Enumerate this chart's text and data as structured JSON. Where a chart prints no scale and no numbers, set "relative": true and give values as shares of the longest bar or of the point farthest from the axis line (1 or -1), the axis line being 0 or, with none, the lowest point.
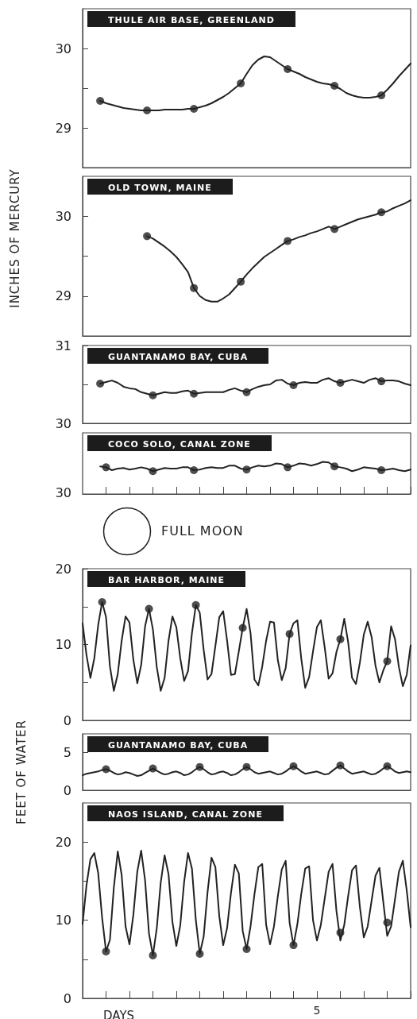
{
  "chart_data": [
    {
      "type": "line",
      "title": "THULE AIR BASE, GREENLAND",
      "ylim": [
        28.5,
        30.5
      ],
      "yticks": [
        29,
        {
          "value": 29.5,
          "label": null
        },
        30
      ],
      "tick_labels": "y",
      "categories": [
        null,
        null,
        null,
        null,
        null,
        null,
        null,
        null,
        null,
        null,
        null,
        null,
        null,
        null,
        null,
        null,
        null,
        null,
        null,
        null,
        null,
        null,
        null,
        null,
        null,
        null,
        null,
        null,
        null,
        null,
        null,
        null,
        null,
        null,
        null,
        null,
        null,
        null,
        null,
        null,
        null,
        null,
        null,
        null,
        null,
        null,
        null,
        null,
        null,
        null,
        null,
        null,
        null,
        null,
        null,
        null,
        null
      ],
      "series": [
        {
          "marker": "none",
          "color": "#222222",
          "values": [
            null,
            null,
            null,
            29.34,
            29.31,
            29.29,
            29.27,
            29.25,
            29.24,
            29.23,
            29.22,
            29.22,
            29.22,
            29.22,
            29.23,
            29.23,
            29.23,
            29.23,
            29.24,
            29.24,
            29.26,
            29.28,
            29.31,
            29.35,
            29.39,
            29.44,
            29.5,
            29.56,
            29.68,
            29.79,
            29.86,
            29.9,
            29.89,
            29.84,
            29.79,
            29.74,
            29.71,
            29.68,
            29.64,
            29.61,
            29.58,
            29.56,
            29.55,
            29.53,
            29.49,
            29.44,
            29.41,
            29.39,
            29.38,
            29.38,
            29.39,
            29.41,
            29.48,
            29.56,
            29.65,
            29.73,
            29.81
          ]
        },
        {
          "type": "scatter",
          "marker": "circle",
          "color": "#222222",
          "values": [
            null,
            null,
            null,
            29.34,
            null,
            null,
            null,
            null,
            null,
            null,
            null,
            29.22,
            null,
            null,
            null,
            null,
            null,
            null,
            null,
            29.24,
            null,
            null,
            null,
            null,
            null,
            null,
            null,
            29.56,
            null,
            null,
            null,
            null,
            null,
            null,
            null,
            29.74,
            null,
            null,
            null,
            null,
            null,
            null,
            null,
            29.53,
            null,
            null,
            null,
            null,
            null,
            null,
            null,
            29.41,
            null,
            null,
            null,
            null,
            null
          ]
        }
      ]
    },
    {
      "type": "line",
      "title": "OLD TOWN, MAINE",
      "ylabel": "INCHES OF MERCURY",
      "ylim": [
        28.5,
        30.5
      ],
      "yticks": [
        29,
        {
          "value": 29.5,
          "label": null
        },
        30
      ],
      "tick_labels": "y",
      "categories": [
        null,
        null,
        null,
        null,
        null,
        null,
        null,
        null,
        null,
        null,
        null,
        null,
        null,
        null,
        null,
        null,
        null,
        null,
        null,
        null,
        null,
        null,
        null,
        null,
        null,
        null,
        null,
        null,
        null,
        null,
        null,
        null,
        null,
        null,
        null,
        null,
        null,
        null,
        null,
        null,
        null,
        null,
        null,
        null,
        null,
        null,
        null,
        null,
        null,
        null,
        null,
        null,
        null,
        null,
        null,
        null,
        null
      ],
      "series": [
        {
          "marker": "none",
          "color": "#222222",
          "values": [
            null,
            null,
            null,
            null,
            null,
            null,
            null,
            null,
            null,
            null,
            null,
            29.75,
            29.72,
            29.67,
            29.62,
            29.56,
            29.49,
            29.4,
            29.3,
            29.1,
            29.0,
            28.95,
            28.93,
            28.93,
            28.97,
            29.02,
            29.1,
            29.18,
            29.27,
            29.35,
            29.42,
            29.49,
            29.54,
            29.59,
            29.64,
            29.69,
            29.71,
            29.74,
            29.76,
            29.79,
            29.81,
            29.84,
            29.87,
            29.84,
            29.87,
            29.9,
            29.93,
            29.96,
            29.98,
            30.0,
            30.02,
            30.05,
            30.06,
            30.1,
            30.13,
            30.16,
            30.2
          ]
        },
        {
          "type": "scatter",
          "marker": "circle",
          "color": "#222222",
          "values": [
            null,
            null,
            null,
            null,
            null,
            null,
            null,
            null,
            null,
            null,
            null,
            29.75,
            null,
            null,
            null,
            null,
            null,
            null,
            null,
            29.1,
            null,
            null,
            null,
            null,
            null,
            null,
            null,
            29.18,
            null,
            null,
            null,
            null,
            null,
            null,
            null,
            29.69,
            null,
            null,
            null,
            null,
            null,
            null,
            null,
            29.84,
            null,
            null,
            null,
            null,
            null,
            null,
            null,
            30.05,
            null,
            null,
            null,
            null,
            null
          ]
        }
      ]
    },
    {
      "type": "line",
      "title": "GUANTANAMO BAY, CUBA",
      "ylim": [
        30,
        31
      ],
      "yticks": [
        30,
        {
          "value": 30.5,
          "label": null
        },
        31
      ],
      "tick_labels": "y",
      "categories": [
        null,
        null,
        null,
        null,
        null,
        null,
        null,
        null,
        null,
        null,
        null,
        null,
        null,
        null,
        null,
        null,
        null,
        null,
        null,
        null,
        null,
        null,
        null,
        null,
        null,
        null,
        null,
        null,
        null,
        null,
        null,
        null,
        null,
        null,
        null,
        null,
        null,
        null,
        null,
        null,
        null,
        null,
        null,
        null,
        null,
        null,
        null,
        null,
        null,
        null,
        null,
        null,
        null,
        null,
        null,
        null,
        null
      ],
      "series": [
        {
          "marker": "none",
          "color": "#222222",
          "values": [
            null,
            null,
            null,
            30.51,
            30.53,
            30.55,
            30.52,
            30.47,
            30.45,
            30.44,
            30.4,
            30.38,
            30.36,
            30.38,
            30.4,
            30.39,
            30.39,
            30.41,
            30.42,
            30.38,
            30.39,
            30.4,
            30.4,
            30.4,
            30.4,
            30.43,
            30.45,
            30.42,
            30.4,
            30.44,
            30.47,
            30.49,
            30.5,
            30.55,
            30.56,
            30.51,
            30.49,
            30.52,
            30.53,
            30.52,
            30.52,
            30.56,
            30.58,
            30.54,
            30.52,
            30.54,
            30.56,
            30.54,
            30.52,
            30.56,
            30.58,
            30.54,
            30.55,
            30.55,
            30.54,
            30.51,
            30.49
          ]
        },
        {
          "type": "scatter",
          "marker": "circle",
          "color": "#222222",
          "values": [
            null,
            null,
            null,
            30.51,
            null,
            null,
            null,
            null,
            null,
            null,
            null,
            null,
            30.36,
            null,
            null,
            null,
            null,
            null,
            null,
            30.38,
            null,
            null,
            null,
            null,
            null,
            null,
            null,
            null,
            30.4,
            null,
            null,
            null,
            null,
            null,
            null,
            null,
            30.49,
            null,
            null,
            null,
            null,
            null,
            null,
            null,
            30.52,
            null,
            null,
            null,
            null,
            null,
            null,
            30.54,
            null,
            null,
            null,
            null,
            null
          ]
        }
      ]
    },
    {
      "type": "line",
      "title": "COCO SOLO, CANAL ZONE",
      "relative": true,
      "annotations": [
        "30"
      ],
      "tick_labels": false,
      "categories": [
        null,
        null,
        null,
        null,
        null,
        null,
        null,
        null,
        null,
        null,
        null,
        null,
        null,
        null,
        null,
        null,
        null,
        null,
        null,
        null,
        null,
        null,
        null,
        null,
        null,
        null,
        null,
        null,
        null,
        null,
        null,
        null,
        null,
        null,
        null,
        null,
        null,
        null,
        null,
        null,
        null,
        null,
        null,
        null,
        null,
        null,
        null,
        null,
        null,
        null,
        null,
        null,
        null,
        null,
        null,
        null,
        null
      ],
      "series": [
        {
          "marker": "none",
          "color": "#222222",
          "values": [
            null,
            null,
            null,
            0.86,
            0.83,
            0.74,
            0.79,
            0.81,
            0.76,
            0.79,
            0.83,
            0.79,
            0.71,
            0.76,
            0.81,
            0.79,
            0.79,
            0.83,
            0.83,
            0.74,
            0.76,
            0.81,
            0.83,
            0.81,
            0.81,
            0.88,
            0.88,
            0.79,
            0.76,
            0.83,
            0.88,
            0.86,
            0.88,
            0.95,
            0.93,
            0.83,
            0.88,
            0.95,
            0.93,
            0.88,
            0.93,
            1,
            0.98,
            0.86,
            0.83,
            0.79,
            0.71,
            0.76,
            0.83,
            0.81,
            0.79,
            0.74,
            0.76,
            0.79,
            0.74,
            0.71,
            0.76
          ]
        },
        {
          "type": "scatter",
          "marker": "circle",
          "color": "#222222",
          "values": [
            null,
            null,
            null,
            null,
            0.83,
            null,
            null,
            null,
            null,
            null,
            null,
            null,
            0.71,
            null,
            null,
            null,
            null,
            null,
            null,
            0.74,
            null,
            null,
            null,
            null,
            null,
            null,
            null,
            null,
            0.76,
            null,
            null,
            null,
            null,
            null,
            null,
            0.83,
            null,
            null,
            null,
            null,
            null,
            null,
            null,
            0.86,
            null,
            null,
            null,
            null,
            null,
            null,
            null,
            0.74,
            null,
            null,
            null,
            null,
            null
          ]
        }
      ]
    },
    {
      "type": "other",
      "annotations": [
        "FULL MOON"
      ]
    },
    {
      "type": "line",
      "title": "BAR HARBOR, MAINE",
      "ylim": [
        0,
        20
      ],
      "yticks": [
        0,
        {
          "value": 5,
          "label": null
        },
        10,
        {
          "value": 15,
          "label": null
        },
        20
      ],
      "tick_labels": "y",
      "categories": [
        null,
        null,
        null,
        null,
        null,
        null,
        null,
        null,
        null,
        null,
        null,
        null,
        null,
        null,
        null,
        null,
        null,
        null,
        null,
        null,
        null,
        null,
        null,
        null,
        null,
        null,
        null,
        null,
        null,
        null,
        null,
        null,
        null,
        null,
        null,
        null,
        null,
        null,
        null,
        null,
        null,
        null,
        null,
        null,
        null,
        null,
        null,
        null,
        null,
        null,
        null,
        null,
        null,
        null,
        null,
        null,
        null,
        null,
        null,
        null,
        null,
        null,
        null,
        null,
        null,
        null,
        null,
        null,
        null,
        null,
        null,
        null,
        null,
        null,
        null,
        null,
        null,
        null,
        null,
        null,
        null,
        null,
        null,
        null,
        null
      ],
      "series": [
        {
          "marker": "none",
          "color": "#222222",
          "values": [
            12.8,
            8.6,
            5.6,
            8.2,
            12.6,
            15.6,
            13.6,
            7.1,
            3.9,
            6.1,
            10.5,
            13.7,
            12.9,
            8.0,
            4.9,
            7.3,
            12.4,
            14.7,
            12.0,
            7.0,
            3.9,
            5.6,
            10.5,
            13.7,
            12.3,
            8.2,
            5.2,
            6.5,
            11.5,
            15.2,
            14.2,
            9.3,
            5.4,
            6.1,
            9.8,
            13.6,
            14.4,
            10.5,
            6.0,
            6.1,
            9.1,
            12.2,
            14.7,
            11.5,
            5.4,
            4.6,
            7.1,
            10.5,
            13.0,
            12.9,
            7.9,
            5.3,
            6.9,
            11.4,
            12.8,
            13.2,
            8.1,
            4.3,
            5.7,
            9.1,
            12.3,
            13.2,
            9.6,
            5.5,
            6.2,
            9.0,
            10.7,
            13.4,
            10.3,
            5.6,
            4.8,
            7.6,
            11.3,
            13.0,
            11.0,
            7.2,
            5.0,
            6.6,
            7.8,
            12.4,
            10.7,
            7.0,
            4.5,
            6.0,
            9.9
          ]
        },
        {
          "type": "scatter",
          "marker": "circle",
          "color": "#222222",
          "values": [
            null,
            null,
            null,
            null,
            null,
            15.6,
            null,
            null,
            null,
            null,
            null,
            null,
            null,
            null,
            null,
            null,
            null,
            14.7,
            null,
            null,
            null,
            null,
            null,
            null,
            null,
            null,
            null,
            null,
            null,
            15.2,
            null,
            null,
            null,
            null,
            null,
            null,
            null,
            null,
            null,
            null,
            null,
            12.2,
            null,
            null,
            null,
            null,
            null,
            null,
            null,
            null,
            null,
            null,
            null,
            11.4,
            null,
            null,
            null,
            null,
            null,
            null,
            null,
            null,
            null,
            null,
            null,
            null,
            10.7,
            null,
            null,
            null,
            null,
            null,
            null,
            null,
            null,
            null,
            null,
            null,
            7.8,
            null,
            null,
            null,
            null,
            null,
            null
          ]
        }
      ]
    },
    {
      "type": "line",
      "title": "GUANTANAMO BAY, CUBA",
      "ylabel": "FEET OF WATER",
      "ylim": [
        0,
        7.5
      ],
      "yticks": [
        0,
        5
      ],
      "tick_labels": "y",
      "categories": [
        null,
        null,
        null,
        null,
        null,
        null,
        null,
        null,
        null,
        null,
        null,
        null,
        null,
        null,
        null,
        null,
        null,
        null,
        null,
        null,
        null,
        null,
        null,
        null,
        null,
        null,
        null,
        null,
        null,
        null,
        null,
        null,
        null,
        null,
        null,
        null,
        null,
        null,
        null,
        null,
        null,
        null,
        null,
        null,
        null,
        null,
        null,
        null,
        null,
        null,
        null,
        null,
        null,
        null,
        null,
        null,
        null,
        null,
        null,
        null,
        null,
        null,
        null,
        null,
        null,
        null,
        null,
        null,
        null,
        null,
        null,
        null,
        null,
        null,
        null,
        null,
        null,
        null,
        null,
        null,
        null,
        null,
        null,
        null,
        null
      ],
      "series": [
        {
          "marker": "none",
          "color": "#222222",
          "values": [
            2.0,
            2.2,
            2.3,
            2.4,
            2.5,
            2.7,
            2.8,
            2.6,
            2.3,
            2.1,
            2.2,
            2.4,
            2.3,
            2.1,
            1.9,
            2.0,
            2.3,
            2.6,
            2.9,
            2.6,
            2.3,
            2.1,
            2.2,
            2.4,
            2.5,
            2.3,
            2.0,
            2.1,
            2.4,
            2.8,
            3.1,
            2.8,
            2.4,
            2.1,
            2.2,
            2.4,
            2.5,
            2.3,
            2.0,
            2.1,
            2.4,
            2.8,
            3.1,
            2.8,
            2.4,
            2.2,
            2.3,
            2.4,
            2.5,
            2.3,
            2.1,
            2.2,
            2.5,
            2.9,
            3.2,
            2.9,
            2.5,
            2.2,
            2.3,
            2.4,
            2.5,
            2.3,
            2.1,
            2.2,
            2.6,
            3.0,
            3.3,
            2.9,
            2.5,
            2.2,
            2.3,
            2.4,
            2.5,
            2.3,
            2.1,
            2.2,
            2.5,
            2.9,
            3.2,
            2.9,
            2.5,
            2.3,
            2.4,
            2.5,
            2.4
          ]
        },
        {
          "type": "scatter",
          "marker": "circle",
          "color": "#222222",
          "values": [
            null,
            null,
            null,
            null,
            null,
            null,
            2.8,
            null,
            null,
            null,
            null,
            null,
            null,
            null,
            null,
            null,
            null,
            null,
            2.9,
            null,
            null,
            null,
            null,
            null,
            null,
            null,
            null,
            null,
            null,
            null,
            3.1,
            null,
            null,
            null,
            null,
            null,
            null,
            null,
            null,
            null,
            null,
            null,
            3.1,
            null,
            null,
            null,
            null,
            null,
            null,
            null,
            null,
            null,
            null,
            null,
            3.2,
            null,
            null,
            null,
            null,
            null,
            null,
            null,
            null,
            null,
            null,
            null,
            3.3,
            null,
            null,
            null,
            null,
            null,
            null,
            null,
            null,
            null,
            null,
            null,
            3.2,
            null,
            null,
            null,
            null,
            null,
            null
          ]
        }
      ]
    },
    {
      "type": "line",
      "title": "NAOS ISLAND, CANAL ZONE",
      "xlabel": "DAYS",
      "ylim": [
        0,
        25
      ],
      "yticks": [
        0,
        {
          "value": 5,
          "label": null
        },
        10,
        {
          "value": 15,
          "label": null
        },
        20
      ],
      "categories": [
        null,
        null,
        null,
        null,
        null,
        null,
        null,
        null,
        null,
        null,
        null,
        null,
        null,
        null,
        null,
        null,
        null,
        null,
        null,
        null,
        null,
        null,
        null,
        null,
        null,
        null,
        null,
        null,
        null,
        null,
        null,
        null,
        null,
        null,
        null,
        null,
        null,
        null,
        null,
        null,
        null,
        null,
        null,
        null,
        null,
        null,
        null,
        null,
        null,
        null,
        null,
        null,
        null,
        null,
        null,
        null,
        null,
        null,
        null,
        null,
        "5",
        null,
        null,
        null,
        null,
        null,
        null,
        null,
        null,
        null,
        null,
        null,
        null,
        null,
        null,
        null,
        null,
        null,
        null,
        null,
        null,
        null,
        null,
        null,
        null
      ],
      "series": [
        {
          "marker": "none",
          "color": "#222222",
          "values": [
            9.5,
            14.5,
            17.8,
            18.6,
            16.0,
            10.3,
            6.0,
            7.5,
            14.2,
            18.8,
            15.8,
            9.2,
            6.9,
            10.7,
            16.2,
            18.9,
            15.1,
            8.3,
            5.5,
            9.0,
            14.8,
            18.3,
            15.9,
            9.8,
            6.7,
            9.3,
            14.9,
            18.6,
            16.6,
            10.0,
            5.7,
            7.9,
            13.6,
            18.0,
            16.8,
            10.5,
            6.8,
            9.0,
            13.5,
            17.1,
            16.0,
            8.6,
            6.3,
            9.2,
            13.3,
            16.8,
            17.2,
            9.4,
            6.9,
            9.2,
            13.1,
            16.5,
            17.6,
            9.7,
            6.8,
            9.5,
            13.4,
            16.6,
            16.9,
            10.0,
            7.4,
            9.4,
            12.8,
            16.2,
            17.2,
            11.2,
            7.4,
            9.4,
            13.1,
            16.4,
            17.0,
            11.7,
            7.8,
            9.2,
            12.5,
            15.7,
            16.7,
            12.3,
            8.0,
            9.2,
            12.7,
            16.2,
            17.6,
            13.8,
            9.1
          ]
        },
        {
          "type": "scatter",
          "marker": "circle",
          "color": "#222222",
          "values": [
            null,
            null,
            null,
            null,
            null,
            null,
            6.0,
            null,
            null,
            null,
            null,
            null,
            null,
            null,
            null,
            null,
            null,
            null,
            5.5,
            null,
            null,
            null,
            null,
            null,
            null,
            null,
            null,
            null,
            null,
            null,
            5.7,
            null,
            null,
            null,
            null,
            null,
            null,
            null,
            null,
            null,
            null,
            null,
            6.3,
            null,
            null,
            null,
            null,
            null,
            null,
            null,
            null,
            null,
            null,
            null,
            6.8,
            null,
            null,
            null,
            null,
            null,
            null,
            null,
            null,
            null,
            null,
            null,
            8.4,
            null,
            null,
            null,
            null,
            null,
            null,
            null,
            null,
            null,
            null,
            null,
            9.7,
            null,
            null,
            null,
            null,
            null,
            null
          ]
        }
      ]
    }
  ]
}
